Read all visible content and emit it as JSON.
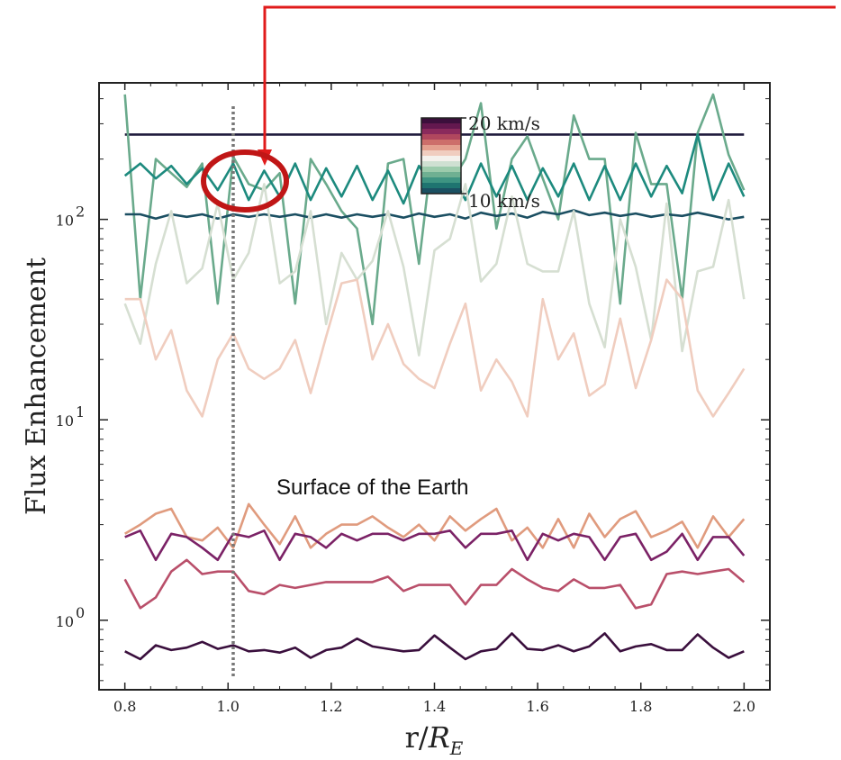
{
  "chart_data": {
    "type": "line",
    "xlabel": "r/R_E",
    "ylabel": "Flux Enhancement",
    "xlim": [
      0.75,
      2.05
    ],
    "ylim": [
      0.45,
      480
    ],
    "log_y": true,
    "grid": false,
    "x_ticks": [
      "0.8",
      "1.0",
      "1.2",
      "1.4",
      "1.6",
      "1.8",
      "2.0"
    ],
    "y_ticks": [
      {
        "base": "10",
        "exp": "0",
        "value": 1
      },
      {
        "base": "10",
        "exp": "1",
        "value": 10
      },
      {
        "base": "10",
        "exp": "2",
        "value": 100
      }
    ],
    "colorbar": {
      "top_label": "20 km/s",
      "bottom_label": "10 km/s",
      "colors": [
        "#3b0f3c",
        "#63184f",
        "#8a2a5c",
        "#b0475e",
        "#cd6e6a",
        "#e4a08f",
        "#f0cdbf",
        "#f4f1ec",
        "#cfe0d2",
        "#9ccbac",
        "#6fb092",
        "#3e9482",
        "#1f7470",
        "#1b5062"
      ]
    },
    "annotation": "Surface of the Earth",
    "reference_line_x": 1.01,
    "x": [
      0.8,
      0.83,
      0.86,
      0.89,
      0.92,
      0.95,
      0.98,
      1.01,
      1.04,
      1.07,
      1.1,
      1.13,
      1.16,
      1.19,
      1.22,
      1.25,
      1.28,
      1.31,
      1.34,
      1.37,
      1.4,
      1.43,
      1.46,
      1.49,
      1.52,
      1.55,
      1.58,
      1.61,
      1.64,
      1.67,
      1.7,
      1.73,
      1.76,
      1.79,
      1.82,
      1.85,
      1.88,
      1.91,
      1.94,
      1.97,
      2.0
    ],
    "series": [
      {
        "color": "#1e1a3c",
        "values": [
          265,
          265,
          265,
          265,
          265,
          265,
          265,
          265,
          265,
          265,
          265,
          265,
          265,
          265,
          265,
          265,
          265,
          265,
          265,
          265,
          265,
          265,
          265,
          265,
          265,
          265,
          265,
          265,
          265,
          265,
          265,
          265,
          265,
          265,
          265,
          265,
          265,
          265,
          265,
          265,
          265
        ]
      },
      {
        "color": "#6aaa8c",
        "values": [
          420,
          40,
          200,
          170,
          145,
          190,
          38,
          205,
          150,
          140,
          170,
          38,
          200,
          150,
          110,
          90,
          30,
          190,
          200,
          60,
          270,
          150,
          200,
          380,
          90,
          200,
          260,
          160,
          100,
          330,
          200,
          200,
          38,
          270,
          150,
          150,
          40,
          270,
          420,
          210,
          140
        ]
      },
      {
        "color": "#1d8a7e",
        "values": [
          165,
          190,
          160,
          185,
          150,
          180,
          140,
          190,
          125,
          175,
          130,
          190,
          125,
          180,
          130,
          185,
          125,
          175,
          120,
          185,
          140,
          175,
          125,
          190,
          130,
          185,
          125,
          180,
          130,
          190,
          125,
          185,
          125,
          190,
          130,
          185,
          135,
          265,
          125,
          190,
          130
        ]
      },
      {
        "color": "#1b4f62",
        "values": [
          106,
          106,
          101,
          106,
          103,
          106,
          101,
          106,
          103,
          106,
          103,
          106,
          102,
          106,
          102,
          106,
          103,
          106,
          102,
          107,
          103,
          106,
          101,
          108,
          104,
          107,
          102,
          109,
          106,
          111,
          105,
          108,
          104,
          107,
          103,
          106,
          104,
          108,
          104,
          100,
          103
        ]
      },
      {
        "color": "#d6dfd2",
        "values": [
          38,
          24,
          60,
          110,
          48,
          57,
          120,
          50,
          68,
          150,
          48,
          55,
          110,
          30,
          68,
          50,
          62,
          110,
          58,
          21,
          70,
          80,
          150,
          49,
          60,
          130,
          60,
          55,
          55,
          110,
          38,
          23,
          100,
          58,
          25,
          120,
          22,
          55,
          58,
          125,
          40
        ]
      },
      {
        "color": "#f0cdbf",
        "values": [
          40,
          40,
          20,
          28,
          14,
          10.4,
          20,
          27,
          18,
          16,
          18,
          25,
          13.6,
          26,
          48,
          50,
          20,
          30,
          19,
          16,
          14.4,
          24,
          38,
          14,
          20,
          15.5,
          10.4,
          40,
          20,
          27,
          13.2,
          15,
          32,
          14.4,
          25,
          50,
          40,
          14,
          10.4,
          13.6,
          18
        ]
      },
      {
        "color": "#e09b7e",
        "values": [
          2.7,
          3.0,
          3.4,
          3.6,
          2.6,
          2.5,
          2.9,
          2.3,
          3.8,
          3.0,
          2.4,
          3.3,
          2.3,
          2.7,
          3.0,
          3.0,
          3.3,
          2.9,
          2.6,
          3.0,
          2.5,
          3.3,
          2.8,
          3.2,
          3.6,
          2.5,
          2.9,
          2.3,
          3.2,
          2.3,
          3.4,
          2.6,
          3.2,
          3.5,
          2.6,
          2.8,
          3.1,
          2.3,
          3.3,
          2.6,
          3.2
        ]
      },
      {
        "color": "#7b2266",
        "values": [
          2.6,
          2.8,
          2.0,
          2.7,
          2.6,
          2.3,
          2.0,
          2.7,
          2.6,
          2.8,
          2.0,
          2.7,
          2.6,
          2.3,
          2.7,
          2.5,
          2.7,
          2.7,
          2.5,
          2.7,
          2.7,
          2.8,
          2.3,
          2.7,
          2.7,
          2.8,
          2.0,
          2.7,
          2.5,
          2.7,
          2.6,
          2.0,
          2.6,
          2.7,
          2.0,
          2.2,
          2.7,
          2.0,
          2.6,
          2.6,
          2.1
        ]
      },
      {
        "color": "#b94f6a",
        "values": [
          1.6,
          1.15,
          1.3,
          1.75,
          2.0,
          1.7,
          1.75,
          1.75,
          1.4,
          1.35,
          1.5,
          1.45,
          1.5,
          1.55,
          1.55,
          1.55,
          1.55,
          1.65,
          1.4,
          1.5,
          1.5,
          1.5,
          1.2,
          1.5,
          1.5,
          1.8,
          1.6,
          1.45,
          1.4,
          1.6,
          1.45,
          1.45,
          1.5,
          1.15,
          1.2,
          1.7,
          1.75,
          1.7,
          1.75,
          1.8,
          1.55
        ]
      },
      {
        "color": "#3a0f3d",
        "values": [
          0.7,
          0.64,
          0.75,
          0.71,
          0.73,
          0.78,
          0.72,
          0.75,
          0.7,
          0.71,
          0.69,
          0.73,
          0.65,
          0.71,
          0.73,
          0.81,
          0.74,
          0.72,
          0.7,
          0.71,
          0.84,
          0.73,
          0.64,
          0.7,
          0.72,
          0.86,
          0.72,
          0.71,
          0.75,
          0.7,
          0.74,
          0.86,
          0.7,
          0.74,
          0.76,
          0.71,
          0.71,
          0.85,
          0.73,
          0.65,
          0.7
        ]
      }
    ]
  }
}
